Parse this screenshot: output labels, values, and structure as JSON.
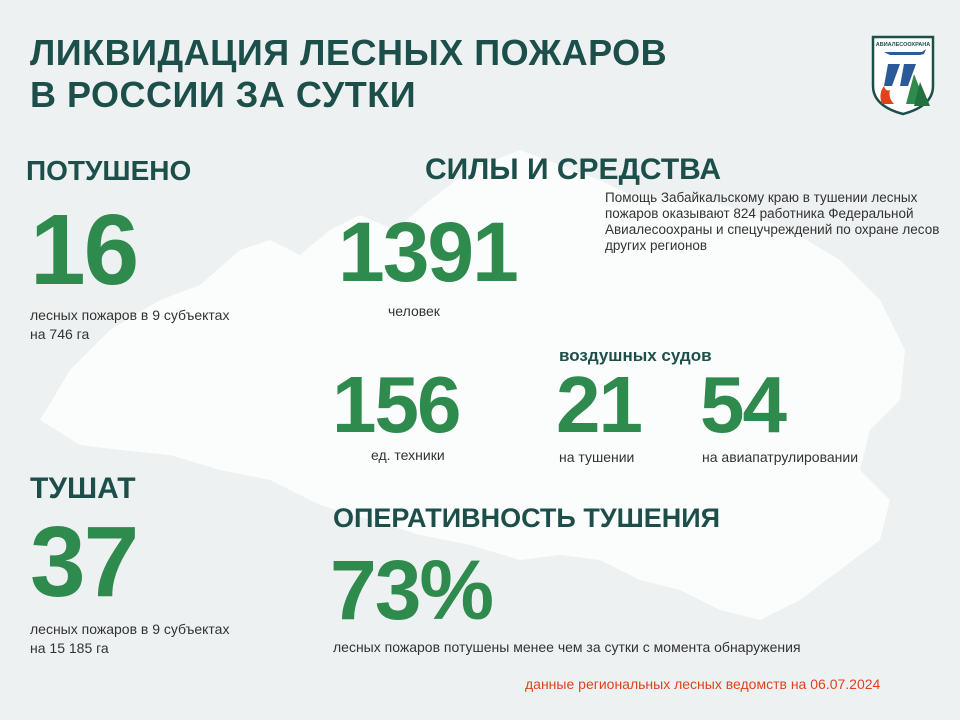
{
  "title": {
    "line1": "ЛИКВИДАЦИЯ ЛЕСНЫХ ПОЖАРОВ",
    "line2": "В РОССИИ ЗА СУТКИ"
  },
  "logo": {
    "text": "АВИАЛЕСООХРАНА"
  },
  "extinguished": {
    "heading": "ПОТУШЕНО",
    "value": "16",
    "caption_line1": "лесных пожаров в 9 субъектах",
    "caption_line2": "на 746 га"
  },
  "forces": {
    "heading": "СИЛЫ И СРЕДСТВА",
    "people_value": "1391",
    "people_caption": "человек",
    "note": "Помощь Забайкальскому краю в тушении лесных пожаров оказывают 824 работника  Федеральной Авиалесоохраны и спецучреждений  по охране лесов других регионов",
    "equipment_value": "156",
    "equipment_caption": "ед. техники",
    "aircraft_heading": "воздушных судов",
    "aircraft_fire_value": "21",
    "aircraft_fire_caption": "на тушении",
    "aircraft_patrol_value": "54",
    "aircraft_patrol_caption": "на авиапатрулировании"
  },
  "burning": {
    "heading": "ТУШАТ",
    "value": "37",
    "caption_line1": "лесных пожаров в 9 субъектах",
    "caption_line2": "на 15 185 га"
  },
  "efficiency": {
    "heading": "ОПЕРАТИВНОСТЬ ТУШЕНИЯ",
    "value": "73%",
    "caption": "лесных пожаров потушены  менее чем за сутки  с момента обнаружения"
  },
  "footer": "данные региональных лесных ведомств на 06.07.2024",
  "colors": {
    "title": "#1d4f4a",
    "number": "#2f8a4e",
    "footer": "#e2411e",
    "background": "#eef1f1",
    "map": "#ffffff"
  }
}
